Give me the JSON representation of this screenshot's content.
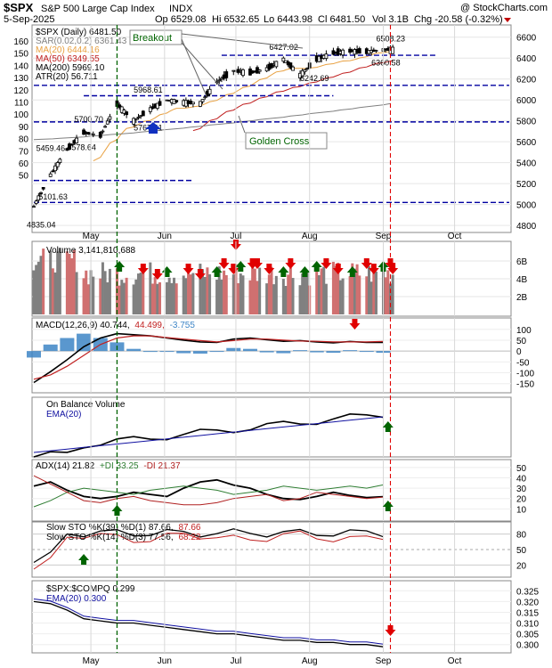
{
  "header": {
    "symbol": "$SPX",
    "name": "S&P 500 Large Cap Index",
    "exchange": "INDX",
    "credit": "@ StockCharts.com",
    "date": "5-Sep-2025",
    "open": "Op 6529.08",
    "high": "Hi 6532.65",
    "low": "Lo 6443.98",
    "close": "Cl 6481.50",
    "volume": "Vol 3.1B",
    "change": "Chg -20.58 (-0.32%)"
  },
  "colors": {
    "candle": "#000000",
    "ma20": "#e8a040",
    "ma50": "#c02020",
    "ma200": "#808080",
    "psar": "#808080",
    "support": "#0000a0",
    "signal_up": "#006400",
    "signal_down": "#e00000",
    "marker_green": "#006400",
    "marker_red": "#cc0000",
    "volume_up": "#808080",
    "volume_down": "#d07070",
    "macd_hist": "#3d85c6",
    "obv_ema": "#1010a0",
    "adx": "#000000",
    "pdi": "#2e7d32",
    "mdi": "#b02020",
    "sto_fast": "#000000",
    "sto_slow": "#c02020"
  },
  "x_axis": {
    "months": [
      "May",
      "Jun",
      "Jul",
      "Aug",
      "Sep",
      "Oct"
    ]
  },
  "price_panel": {
    "legend": [
      "$SPX (Daily) 6481.50",
      "SAR(0.02,0.2) 6361.43",
      "MA(20) 6444.16",
      "MA(50) 6349.55",
      "MA(200) 5969.10",
      "ATR(20) 56.711"
    ],
    "right_ticks": [
      "6600",
      "6400",
      "6200",
      "6000",
      "5800",
      "5600",
      "5400",
      "5200",
      "5000",
      "4800"
    ],
    "left_ticks": [
      "160",
      "150",
      "140",
      "130",
      "120",
      "110",
      "100",
      "90",
      "80",
      "70",
      "60",
      "50"
    ],
    "price_labels": [
      "6508.23",
      "6427.02",
      "6360.58",
      "6242.69",
      "5968.61",
      "5700.70",
      "5767.41",
      "5459.46",
      "5578.64",
      "5101.63",
      "4835.04"
    ],
    "annotations": {
      "breakout": "Breakout",
      "golden_cross": "Golden Cross"
    }
  },
  "volume_panel": {
    "legend": "Volume 3,141,810,688",
    "ticks": [
      "6B",
      "4B",
      "2B"
    ]
  },
  "macd_panel": {
    "legend_main": "MACD(12,26,9) 40.744,",
    "legend_signal": "44.499,",
    "legend_hist": "-3.755",
    "ticks": [
      "100",
      "50",
      "0",
      "-50",
      "-100",
      "-150"
    ]
  },
  "obv_panel": {
    "legend": "On Balance Volume",
    "ema_legend": "EMA(20)"
  },
  "adx_panel": {
    "legend_adx": "ADX(14) 21.82",
    "legend_pdi": "+DI 33.25",
    "legend_mdi": "-DI 21.37",
    "ticks": [
      "50",
      "40",
      "30",
      "20",
      "10"
    ]
  },
  "sto_panel": {
    "legend_1": "Slow STO %K(39) %D(1) 87.66,",
    "legend_1b": "87.66",
    "legend_2": "Slow STO %K(14) %D(3) 77.56,",
    "legend_2b": "68.22",
    "ticks": [
      "80",
      "50",
      "20"
    ]
  },
  "rel_panel": {
    "legend": "$SPX:$COMPQ 0.299",
    "ema_legend": "EMA(20) 0.300",
    "ticks": [
      "0.325",
      "0.320",
      "0.315",
      "0.310",
      "0.305",
      "0.300"
    ]
  },
  "chart_data": {
    "type": "line",
    "title": "$SPX S&P 500 Large Cap Index INDX (Daily)",
    "xlabel": "",
    "x_range": [
      "2025-04-07",
      "2025-10-24"
    ],
    "price": {
      "ylim": [
        4750,
        6700
      ],
      "closes_weekly": [
        [
          "2025-04-07",
          4982
        ],
        [
          "2025-04-14",
          5283
        ],
        [
          "2025-04-21",
          5525
        ],
        [
          "2025-04-28",
          5687
        ],
        [
          "2025-05-05",
          5660
        ],
        [
          "2025-05-12",
          5958
        ],
        [
          "2025-05-19",
          5803
        ],
        [
          "2025-05-26",
          5912
        ],
        [
          "2025-06-02",
          6000
        ],
        [
          "2025-06-09",
          5977
        ],
        [
          "2025-06-16",
          5968
        ],
        [
          "2025-06-23",
          6173
        ],
        [
          "2025-06-30",
          6279
        ],
        [
          "2025-07-07",
          6260
        ],
        [
          "2025-07-14",
          6297
        ],
        [
          "2025-07-21",
          6389
        ],
        [
          "2025-07-28",
          6238
        ],
        [
          "2025-08-04",
          6389
        ],
        [
          "2025-08-11",
          6449
        ],
        [
          "2025-08-18",
          6467
        ],
        [
          "2025-08-25",
          6460
        ],
        [
          "2025-09-01",
          6481
        ]
      ],
      "support_levels": [
        6427,
        6140,
        6040,
        5790,
        5020,
        5230
      ],
      "golden_cross_date": "2025-07-01",
      "breakout_date": "2025-09-04"
    },
    "volume": {
      "ylim": [
        0,
        8000000000
      ],
      "signals_down": 15,
      "signals_up": 10
    },
    "macd": {
      "ylim": [
        -180,
        140
      ],
      "values_weekly": [
        -145,
        -95,
        -40,
        20,
        60,
        80,
        75,
        70,
        60,
        50,
        42,
        40,
        55,
        60,
        52,
        45,
        48,
        42,
        38,
        44,
        40,
        40
      ],
      "signal_weekly": [
        -130,
        -110,
        -70,
        -20,
        30,
        60,
        70,
        70,
        62,
        55,
        48,
        42,
        48,
        55,
        55,
        50,
        46,
        45,
        42,
        42,
        42,
        44
      ]
    },
    "adx": {
      "ylim": [
        0,
        55
      ],
      "adx": 21.82,
      "pdi": 33.25,
      "mdi": 21.37
    },
    "stochastic": {
      "k39": 87.66,
      "d39": 87.66,
      "k14": 77.56,
      "d14": 68.22
    },
    "relative": {
      "ylim": [
        0.297,
        0.328
      ],
      "ratio_weekly": [
        0.32,
        0.319,
        0.316,
        0.312,
        0.311,
        0.31,
        0.31,
        0.309,
        0.308,
        0.307,
        0.306,
        0.305,
        0.305,
        0.304,
        0.303,
        0.302,
        0.302,
        0.301,
        0.301,
        0.3,
        0.3,
        0.299
      ],
      "ema": 0.3
    }
  }
}
